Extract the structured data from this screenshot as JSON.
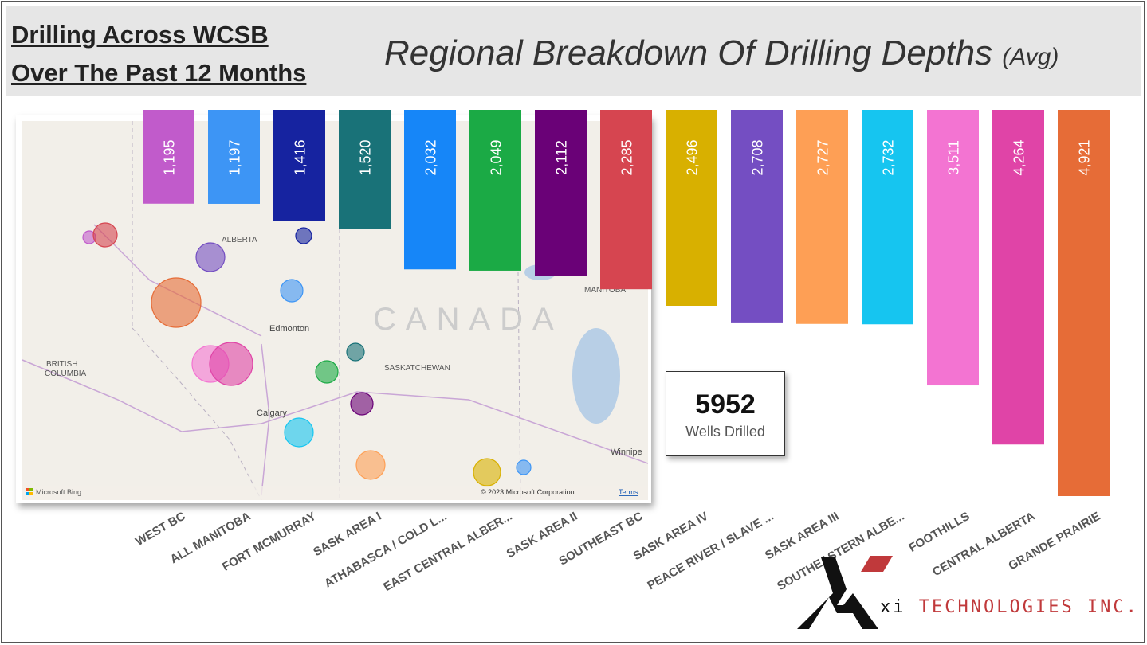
{
  "header": {
    "title_line1": "Drilling Across WCSB ",
    "title_line2": "Over The Past 12 Months",
    "chart_title": "Regional Breakdown Of Drilling Depths",
    "chart_title_suffix": "(Avg)"
  },
  "map": {
    "labels": {
      "alberta": "ALBERTA",
      "bc1": "BRITISH",
      "bc2": "COLUMBIA",
      "sask": "SASKATCHEWAN",
      "manitoba": "MANITOBA",
      "canada": "CANADA",
      "edmonton": "Edmonton",
      "calgary": "Calgary",
      "winnipeg": "Winnipe"
    },
    "attribution": "Microsoft Bing",
    "copyright": "© 2023 Microsoft Corporation",
    "terms": "Terms"
  },
  "card": {
    "value": "5952",
    "label": "Wells Drilled"
  },
  "logo": {
    "xi": "xi",
    "name": "TECHNOLOGIES INC."
  },
  "chart_data": {
    "type": "bar",
    "orientation": "vertical-hanging",
    "title": "Regional Breakdown Of Drilling Depths (Avg)",
    "categories": [
      "WEST BC",
      "ALL MANITOBA",
      "FORT MCMURRAY",
      "SASK AREA I",
      "ATHABASCA / COLD L...",
      "EAST CENTRAL ALBER...",
      "SASK AREA II",
      "SOUTHEAST BC",
      "SASK AREA IV",
      "PEACE RIVER / SLAVE ...",
      "SASK AREA III",
      "SOUTHEASTERN ALBE...",
      "FOOTHILLS",
      "CENTRAL ALBERTA",
      "GRANDE PRAIRIE"
    ],
    "values": [
      1195,
      1197,
      1416,
      1520,
      2032,
      2049,
      2112,
      2285,
      2496,
      2708,
      2727,
      2732,
      3511,
      4264,
      4921
    ],
    "labels": [
      "1,195",
      "1,197",
      "1,416",
      "1,520",
      "2,032",
      "2,049",
      "2,112",
      "2,285",
      "2,496",
      "2,708",
      "2,727",
      "2,732",
      "3,511",
      "4,264",
      "4,921"
    ],
    "colors": [
      "#C15BCB",
      "#3D95F5",
      "#1623A0",
      "#197278",
      "#1686F8",
      "#1BAA45",
      "#6A0177",
      "#D64550",
      "#D8B000",
      "#744EC2",
      "#FE9F55",
      "#16C5F0",
      "#F374D2",
      "#E044A7",
      "#E66C37"
    ],
    "grid": false,
    "legend": "none"
  }
}
